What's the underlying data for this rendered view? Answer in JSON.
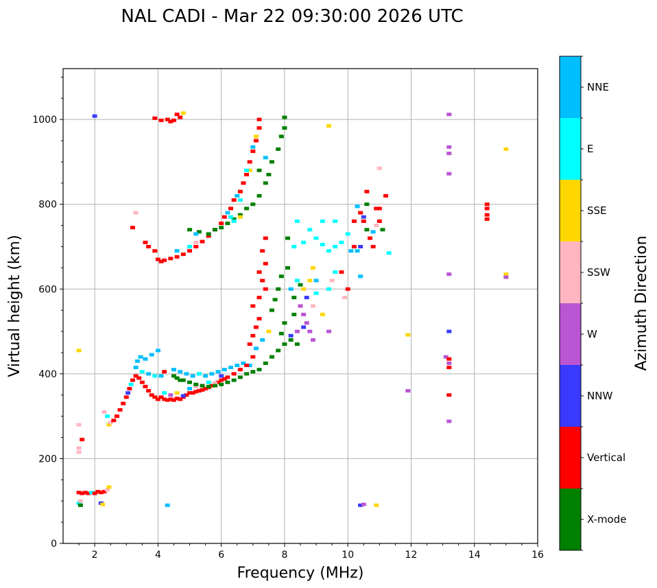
{
  "chart_data": {
    "type": "scatter",
    "title": "NAL CADI - Mar 22 09:30:00 2026 UTC",
    "xlabel": "Frequency (MHz)",
    "ylabel": "Virtual height (km)",
    "xlim": [
      1,
      16
    ],
    "ylim": [
      0,
      1120
    ],
    "xticks": [
      2,
      4,
      6,
      8,
      10,
      12,
      14,
      16
    ],
    "yticks": [
      0,
      200,
      400,
      600,
      800,
      1000
    ],
    "grid": true,
    "colorbar": {
      "label": "Azimuth Direction",
      "placement": "right",
      "categories": [
        {
          "name": "X-mode",
          "color": "#008000"
        },
        {
          "name": "Vertical",
          "color": "#ff0000"
        },
        {
          "name": "NNW",
          "color": "#3a3aff"
        },
        {
          "name": "W",
          "color": "#ba55d3"
        },
        {
          "name": "SSW",
          "color": "#ffb6c1"
        },
        {
          "name": "SSE",
          "color": "#ffd700"
        },
        {
          "name": "E",
          "color": "#00ffff"
        },
        {
          "name": "NNE",
          "color": "#00bfff"
        }
      ]
    },
    "series_note": "points are [frequency_MHz, virtual_height_km, category_index]",
    "points": [
      [
        1.5,
        120,
        1
      ],
      [
        1.6,
        118,
        1
      ],
      [
        1.7,
        120,
        1
      ],
      [
        1.8,
        118,
        1
      ],
      [
        1.9,
        120,
        6
      ],
      [
        2.0,
        118,
        1
      ],
      [
        2.1,
        122,
        1
      ],
      [
        2.2,
        120,
        1
      ],
      [
        2.3,
        122,
        1
      ],
      [
        2.4,
        126,
        4
      ],
      [
        2.45,
        133,
        5
      ],
      [
        1.5,
        95,
        6
      ],
      [
        1.55,
        90,
        0
      ],
      [
        1.55,
        100,
        4
      ],
      [
        2.2,
        95,
        2
      ],
      [
        2.25,
        92,
        5
      ],
      [
        1.5,
        225,
        4
      ],
      [
        1.5,
        215,
        4
      ],
      [
        1.6,
        245,
        1
      ],
      [
        1.5,
        455,
        5
      ],
      [
        1.5,
        280,
        4
      ],
      [
        2.3,
        310,
        4
      ],
      [
        2.4,
        300,
        6
      ],
      [
        2.45,
        280,
        5
      ],
      [
        2.5,
        285,
        4
      ],
      [
        2.6,
        290,
        1
      ],
      [
        2.7,
        300,
        1
      ],
      [
        2.8,
        315,
        1
      ],
      [
        2.9,
        330,
        1
      ],
      [
        3.0,
        345,
        1
      ],
      [
        3.05,
        355,
        2
      ],
      [
        3.1,
        365,
        1
      ],
      [
        3.15,
        375,
        6
      ],
      [
        3.2,
        385,
        1
      ],
      [
        3.3,
        395,
        1
      ],
      [
        3.4,
        390,
        1
      ],
      [
        3.5,
        380,
        1
      ],
      [
        3.6,
        370,
        1
      ],
      [
        3.7,
        360,
        1
      ],
      [
        3.8,
        350,
        1
      ],
      [
        3.9,
        345,
        1
      ],
      [
        4.0,
        340,
        1
      ],
      [
        3.3,
        415,
        7
      ],
      [
        3.35,
        430,
        7
      ],
      [
        3.45,
        440,
        7
      ],
      [
        3.6,
        435,
        7
      ],
      [
        3.8,
        445,
        7
      ],
      [
        4.0,
        455,
        7
      ],
      [
        3.5,
        405,
        6
      ],
      [
        3.7,
        400,
        7
      ],
      [
        3.9,
        395,
        6
      ],
      [
        4.1,
        395,
        7
      ],
      [
        4.2,
        405,
        1
      ],
      [
        4.1,
        345,
        1
      ],
      [
        4.2,
        340,
        1
      ],
      [
        4.3,
        338,
        1
      ],
      [
        4.4,
        340,
        1
      ],
      [
        4.5,
        338,
        1
      ],
      [
        4.6,
        342,
        1
      ],
      [
        4.7,
        340,
        1
      ],
      [
        4.8,
        345,
        1
      ],
      [
        4.9,
        350,
        1
      ],
      [
        5.0,
        355,
        1
      ],
      [
        5.1,
        355,
        1
      ],
      [
        5.2,
        358,
        1
      ],
      [
        5.3,
        360,
        1
      ],
      [
        5.4,
        362,
        1
      ],
      [
        5.5,
        365,
        1
      ],
      [
        5.6,
        368,
        1
      ],
      [
        5.7,
        372,
        1
      ],
      [
        5.8,
        376,
        1
      ],
      [
        5.9,
        380,
        1
      ],
      [
        6.0,
        385,
        1
      ],
      [
        6.1,
        388,
        1
      ],
      [
        6.2,
        392,
        1
      ],
      [
        4.2,
        355,
        6
      ],
      [
        4.4,
        350,
        3
      ],
      [
        4.6,
        355,
        5
      ],
      [
        4.8,
        348,
        2
      ],
      [
        5.0,
        365,
        7
      ],
      [
        5.2,
        370,
        4
      ],
      [
        5.4,
        372,
        3
      ],
      [
        5.6,
        380,
        6
      ],
      [
        5.8,
        378,
        4
      ],
      [
        6.0,
        395,
        2
      ],
      [
        4.5,
        395,
        0
      ],
      [
        4.6,
        390,
        0
      ],
      [
        4.7,
        385,
        0
      ],
      [
        4.8,
        385,
        0
      ],
      [
        5.0,
        380,
        0
      ],
      [
        5.2,
        375,
        0
      ],
      [
        5.4,
        372,
        0
      ],
      [
        5.6,
        370,
        0
      ],
      [
        5.8,
        372,
        0
      ],
      [
        6.0,
        375,
        0
      ],
      [
        6.2,
        380,
        0
      ],
      [
        6.4,
        385,
        0
      ],
      [
        6.6,
        392,
        0
      ],
      [
        6.8,
        400,
        0
      ],
      [
        7.0,
        405,
        0
      ],
      [
        7.2,
        410,
        0
      ],
      [
        7.4,
        425,
        0
      ],
      [
        7.6,
        440,
        0
      ],
      [
        7.8,
        455,
        0
      ],
      [
        8.0,
        470,
        0
      ],
      [
        4.5,
        410,
        7
      ],
      [
        4.7,
        405,
        7
      ],
      [
        4.9,
        400,
        7
      ],
      [
        5.1,
        395,
        7
      ],
      [
        5.3,
        400,
        6
      ],
      [
        5.5,
        395,
        7
      ],
      [
        5.7,
        400,
        7
      ],
      [
        5.9,
        405,
        7
      ],
      [
        6.1,
        410,
        7
      ],
      [
        6.3,
        415,
        7
      ],
      [
        6.5,
        420,
        7
      ],
      [
        6.7,
        425,
        7
      ],
      [
        6.9,
        420,
        7
      ],
      [
        6.4,
        400,
        1
      ],
      [
        6.6,
        410,
        1
      ],
      [
        6.8,
        420,
        1
      ],
      [
        7.0,
        440,
        1
      ],
      [
        6.9,
        470,
        1
      ],
      [
        7.0,
        490,
        1
      ],
      [
        7.1,
        510,
        1
      ],
      [
        7.2,
        530,
        1
      ],
      [
        7.0,
        560,
        1
      ],
      [
        7.2,
        580,
        1
      ],
      [
        7.4,
        600,
        1
      ],
      [
        7.3,
        620,
        1
      ],
      [
        7.2,
        640,
        1
      ],
      [
        7.4,
        660,
        1
      ],
      [
        7.3,
        690,
        1
      ],
      [
        7.4,
        720,
        1
      ],
      [
        7.1,
        460,
        7
      ],
      [
        7.3,
        480,
        7
      ],
      [
        7.5,
        500,
        5
      ],
      [
        7.6,
        550,
        0
      ],
      [
        7.7,
        575,
        0
      ],
      [
        7.8,
        600,
        0
      ],
      [
        7.9,
        630,
        0
      ],
      [
        8.1,
        650,
        0
      ],
      [
        8.0,
        520,
        0
      ],
      [
        7.9,
        495,
        0
      ],
      [
        8.2,
        480,
        0
      ],
      [
        8.4,
        470,
        0
      ],
      [
        8.3,
        580,
        0
      ],
      [
        8.5,
        610,
        0
      ],
      [
        8.3,
        540,
        0
      ],
      [
        8.2,
        600,
        7
      ],
      [
        8.4,
        620,
        6
      ],
      [
        8.5,
        560,
        3
      ],
      [
        8.6,
        540,
        3
      ],
      [
        8.7,
        520,
        3
      ],
      [
        8.8,
        500,
        3
      ],
      [
        8.9,
        480,
        3
      ],
      [
        8.6,
        600,
        5
      ],
      [
        8.8,
        620,
        5
      ],
      [
        8.9,
        650,
        5
      ],
      [
        9.0,
        590,
        6
      ],
      [
        8.9,
        560,
        4
      ],
      [
        8.7,
        580,
        2
      ],
      [
        8.6,
        510,
        2
      ],
      [
        9.4,
        600,
        6
      ],
      [
        9.5,
        620,
        4
      ],
      [
        9.0,
        620,
        7
      ],
      [
        9.2,
        540,
        5
      ],
      [
        8.2,
        490,
        2
      ],
      [
        8.4,
        500,
        3
      ],
      [
        9.4,
        500,
        3
      ],
      [
        9.6,
        640,
        6
      ],
      [
        9.8,
        640,
        1
      ],
      [
        9.9,
        580,
        4
      ],
      [
        10.0,
        600,
        1
      ],
      [
        8.3,
        700,
        6
      ],
      [
        8.6,
        710,
        6
      ],
      [
        9.0,
        720,
        6
      ],
      [
        9.2,
        705,
        6
      ],
      [
        9.4,
        690,
        6
      ],
      [
        9.6,
        700,
        6
      ],
      [
        9.8,
        710,
        6
      ],
      [
        8.1,
        720,
        0
      ],
      [
        8.4,
        760,
        6
      ],
      [
        8.8,
        740,
        6
      ],
      [
        9.2,
        760,
        6
      ],
      [
        9.6,
        760,
        6
      ],
      [
        10.0,
        730,
        6
      ],
      [
        10.2,
        700,
        1
      ],
      [
        10.1,
        690,
        7
      ],
      [
        10.3,
        795,
        7
      ],
      [
        10.4,
        780,
        1
      ],
      [
        10.5,
        760,
        1
      ],
      [
        10.6,
        740,
        0
      ],
      [
        10.7,
        720,
        1
      ],
      [
        10.8,
        735,
        7
      ],
      [
        10.9,
        750,
        4
      ],
      [
        11.0,
        760,
        1
      ],
      [
        11.1,
        740,
        0
      ],
      [
        11.3,
        685,
        6
      ],
      [
        10.9,
        790,
        1
      ],
      [
        10.6,
        800,
        0
      ],
      [
        10.5,
        770,
        2
      ],
      [
        10.4,
        700,
        2
      ],
      [
        10.4,
        630,
        7
      ],
      [
        10.2,
        760,
        1
      ],
      [
        10.8,
        700,
        1
      ],
      [
        11.0,
        790,
        1
      ],
      [
        11.2,
        820,
        1
      ],
      [
        10.6,
        830,
        1
      ],
      [
        11.0,
        885,
        4
      ],
      [
        10.3,
        690,
        7
      ],
      [
        4.0,
        670,
        1
      ],
      [
        4.1,
        665,
        1
      ],
      [
        4.2,
        668,
        1
      ],
      [
        4.4,
        672,
        1
      ],
      [
        4.6,
        676,
        1
      ],
      [
        4.8,
        682,
        1
      ],
      [
        5.0,
        690,
        1
      ],
      [
        5.2,
        700,
        1
      ],
      [
        5.4,
        712,
        1
      ],
      [
        5.6,
        725,
        1
      ],
      [
        5.8,
        740,
        1
      ],
      [
        6.0,
        755,
        1
      ],
      [
        6.1,
        770,
        1
      ],
      [
        6.3,
        790,
        1
      ],
      [
        6.4,
        810,
        1
      ],
      [
        6.6,
        830,
        1
      ],
      [
        6.7,
        850,
        1
      ],
      [
        6.8,
        870,
        1
      ],
      [
        6.9,
        900,
        1
      ],
      [
        7.0,
        925,
        1
      ],
      [
        7.1,
        950,
        1
      ],
      [
        7.2,
        980,
        1
      ],
      [
        7.2,
        1000,
        1
      ],
      [
        3.6,
        710,
        1
      ],
      [
        3.7,
        700,
        1
      ],
      [
        3.9,
        690,
        1
      ],
      [
        4.6,
        690,
        7
      ],
      [
        5.0,
        700,
        6
      ],
      [
        5.2,
        710,
        4
      ],
      [
        6.2,
        780,
        7
      ],
      [
        6.5,
        820,
        7
      ],
      [
        6.6,
        810,
        6
      ],
      [
        6.9,
        880,
        5
      ],
      [
        7.1,
        960,
        5
      ],
      [
        7.0,
        935,
        7
      ],
      [
        6.8,
        880,
        6
      ],
      [
        5.0,
        740,
        0
      ],
      [
        5.3,
        735,
        0
      ],
      [
        5.6,
        730,
        0
      ],
      [
        5.8,
        740,
        0
      ],
      [
        6.0,
        745,
        0
      ],
      [
        6.2,
        755,
        0
      ],
      [
        6.4,
        765,
        0
      ],
      [
        6.6,
        775,
        0
      ],
      [
        6.8,
        790,
        0
      ],
      [
        7.0,
        800,
        0
      ],
      [
        7.2,
        820,
        0
      ],
      [
        7.4,
        850,
        0
      ],
      [
        7.5,
        870,
        0
      ],
      [
        7.6,
        900,
        0
      ],
      [
        7.8,
        930,
        0
      ],
      [
        7.9,
        960,
        0
      ],
      [
        8.0,
        980,
        0
      ],
      [
        8.0,
        1005,
        0
      ],
      [
        7.2,
        880,
        0
      ],
      [
        7.4,
        910,
        7
      ],
      [
        6.6,
        770,
        5
      ],
      [
        6.4,
        760,
        6
      ],
      [
        5.2,
        730,
        7
      ],
      [
        6.3,
        770,
        6
      ],
      [
        3.9,
        1003,
        1
      ],
      [
        4.1,
        998,
        1
      ],
      [
        4.3,
        1000,
        1
      ],
      [
        4.5,
        998,
        1
      ],
      [
        4.7,
        1005,
        1
      ],
      [
        4.8,
        1015,
        5
      ],
      [
        4.6,
        1012,
        1
      ],
      [
        4.4,
        995,
        1
      ],
      [
        2.0,
        1008,
        2
      ],
      [
        3.3,
        780,
        4
      ],
      [
        3.2,
        745,
        1
      ],
      [
        9.4,
        985,
        5
      ],
      [
        13.2,
        1012,
        3
      ],
      [
        13.2,
        935,
        3
      ],
      [
        13.2,
        920,
        3
      ],
      [
        13.2,
        872,
        3
      ],
      [
        15.0,
        930,
        5
      ],
      [
        14.4,
        800,
        1
      ],
      [
        14.4,
        790,
        1
      ],
      [
        14.4,
        775,
        1
      ],
      [
        14.4,
        765,
        1
      ],
      [
        15.0,
        635,
        5
      ],
      [
        15.0,
        628,
        3
      ],
      [
        13.2,
        635,
        3
      ],
      [
        13.2,
        500,
        2
      ],
      [
        11.9,
        492,
        5
      ],
      [
        13.1,
        440,
        3
      ],
      [
        13.2,
        435,
        1
      ],
      [
        13.2,
        425,
        3
      ],
      [
        13.2,
        415,
        1
      ],
      [
        11.9,
        360,
        3
      ],
      [
        13.2,
        350,
        1
      ],
      [
        13.2,
        288,
        3
      ],
      [
        10.4,
        90,
        2
      ],
      [
        10.5,
        92,
        3
      ],
      [
        10.9,
        90,
        5
      ],
      [
        4.3,
        90,
        7
      ]
    ]
  }
}
